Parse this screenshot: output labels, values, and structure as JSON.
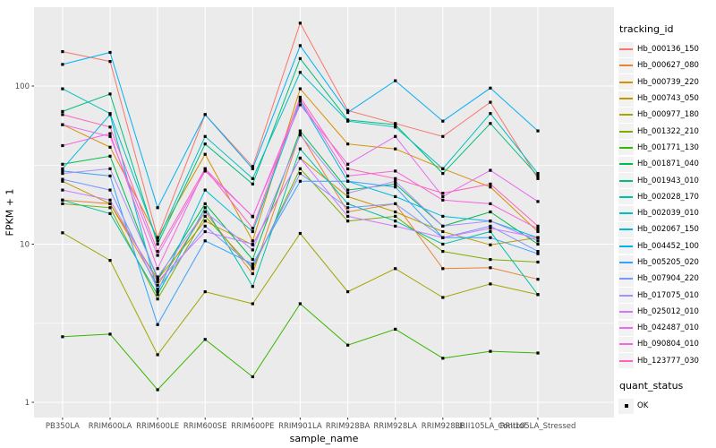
{
  "chart_data": {
    "type": "line",
    "title": "",
    "xlabel": "sample_name",
    "ylabel": "FPKM + 1",
    "y_scale": "log10",
    "y_ticks": [
      1,
      10,
      100
    ],
    "y_tick_labels": [
      "1",
      "10",
      "100"
    ],
    "y_minor_ticks": [
      3.162,
      31.62
    ],
    "ylim": [
      0.8,
      316
    ],
    "grid": true,
    "legend_position": "right",
    "legend_title": "tracking_id",
    "quant_legend": {
      "title": "quant_status",
      "label": "OK"
    },
    "point_marker": "black-square",
    "panel_color": "#EBEBEB",
    "gridline_color": "#FFFFFF",
    "tick_text_color": "#4D4D4D",
    "categories": [
      "PB350LA",
      "RRIM600LA",
      "RRIM600LE",
      "RRIM600SE",
      "RRIM600PE",
      "RRIM901LA",
      "RRIM928BA",
      "RRIM928LA",
      "RRIM928LE",
      "RRII105LA_Control",
      "RRII105LA_Stressed"
    ],
    "series": [
      {
        "name": "Hb_000136_150",
        "color": "#F8766D",
        "values": [
          165,
          143,
          11,
          66,
          31,
          250,
          70,
          58,
          48,
          79,
          26
        ]
      },
      {
        "name": "Hb_000627_080",
        "color": "#EA8331",
        "values": [
          19,
          18,
          5.5,
          16,
          6.5,
          50,
          16,
          18,
          7,
          7.1,
          6
        ]
      },
      {
        "name": "Hb_000739_220",
        "color": "#D89000",
        "values": [
          57,
          41,
          11,
          37,
          10.5,
          96,
          43,
          40,
          30,
          23,
          12
        ]
      },
      {
        "name": "Hb_000743_050",
        "color": "#C09B00",
        "values": [
          25,
          18,
          6,
          14,
          9.9,
          35,
          20,
          16,
          12,
          9.9,
          11
        ]
      },
      {
        "name": "Hb_000977_180",
        "color": "#A3A500",
        "values": [
          11.8,
          7.9,
          2.0,
          5.0,
          4.2,
          11.7,
          5.0,
          7.0,
          4.6,
          5.6,
          4.8
        ]
      },
      {
        "name": "Hb_001322_210",
        "color": "#7CAE00",
        "values": [
          18,
          17,
          4.5,
          15,
          7,
          30,
          14,
          15,
          9,
          8,
          7.7
        ]
      },
      {
        "name": "Hb_001771_130",
        "color": "#39B600",
        "values": [
          2.6,
          2.7,
          1.2,
          2.5,
          1.45,
          4.2,
          2.3,
          2.9,
          1.9,
          2.1,
          2.05
        ]
      },
      {
        "name": "Hb_001871_040",
        "color": "#00BB4E",
        "values": [
          32,
          36,
          6,
          18,
          8,
          52,
          22,
          24,
          13,
          16,
          10
        ]
      },
      {
        "name": "Hb_001943_010",
        "color": "#00BF7D",
        "values": [
          69,
          89,
          10,
          43,
          24,
          149,
          61,
          57,
          28,
          58,
          27
        ]
      },
      {
        "name": "Hb_002028_170",
        "color": "#00C1A7",
        "values": [
          19,
          15.6,
          4.8,
          17,
          5.4,
          40,
          18,
          14,
          10,
          12,
          4.8
        ]
      },
      {
        "name": "Hb_002039_010",
        "color": "#00BFC4",
        "values": [
          96,
          67,
          10.5,
          48,
          26,
          122,
          60,
          55,
          30,
          67,
          28
        ]
      },
      {
        "name": "Hb_002067_150",
        "color": "#00BADE",
        "values": [
          30,
          66,
          5,
          22,
          12,
          80,
          25,
          20,
          15,
          14,
          11
        ]
      },
      {
        "name": "Hb_004452_100",
        "color": "#00B0F6",
        "values": [
          137,
          163,
          17,
          66,
          30,
          180,
          68,
          108,
          60,
          97,
          52
        ]
      },
      {
        "name": "Hb_005205_020",
        "color": "#35A2FF",
        "values": [
          29,
          27,
          3.1,
          10.5,
          7.5,
          25,
          25,
          23,
          11,
          11,
          8.7
        ]
      },
      {
        "name": "Hb_007904_220",
        "color": "#7997FF",
        "values": [
          25.7,
          22,
          5.2,
          13,
          7.2,
          28,
          17,
          18,
          11,
          13,
          9
        ]
      },
      {
        "name": "Hb_017075_010",
        "color": "#A98FFF",
        "values": [
          28,
          30,
          6.2,
          16,
          9.2,
          49,
          21,
          25,
          13,
          14,
          10.5
        ]
      },
      {
        "name": "Hb_025012_010",
        "color": "#CF78FF",
        "values": [
          22,
          19,
          5.8,
          12,
          10,
          35,
          15,
          13,
          11,
          12.6,
          11
        ]
      },
      {
        "name": "Hb_042487_010",
        "color": "#E76BF3",
        "values": [
          57,
          48,
          8.5,
          29,
          15,
          76,
          32,
          48,
          20,
          29.3,
          18.6
        ]
      },
      {
        "name": "Hb_090804_010",
        "color": "#F763E0",
        "values": [
          42,
          50,
          7,
          30,
          14.9,
          82,
          27,
          29,
          19,
          18,
          12.5
        ]
      },
      {
        "name": "Hb_123777_030",
        "color": "#FF62BC",
        "values": [
          66,
          55,
          9,
          30,
          12.6,
          85,
          30,
          26,
          21,
          24,
          13
        ]
      }
    ]
  }
}
